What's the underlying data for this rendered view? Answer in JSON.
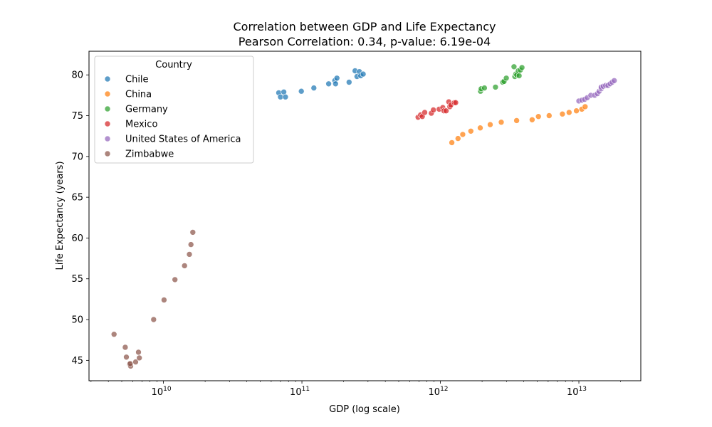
{
  "chart_data": {
    "type": "scatter",
    "title": "Correlation between GDP and Life Expectancy",
    "subtitle": "Pearson Correlation: 0.34, p-value: 6.19e-04",
    "xlabel": "GDP (log scale)",
    "ylabel": "Life Expectancy (years)",
    "xscale": "log",
    "xlim": [
      2900000000.0,
      28000000000000.0
    ],
    "ylim": [
      42.5,
      82.9
    ],
    "x_ticks": [
      {
        "value": 10000000000.0,
        "base": "10",
        "exp": "10"
      },
      {
        "value": 100000000000.0,
        "base": "10",
        "exp": "11"
      },
      {
        "value": 1000000000000.0,
        "base": "10",
        "exp": "12"
      },
      {
        "value": 10000000000000.0,
        "base": "10",
        "exp": "13"
      }
    ],
    "y_ticks": [
      45,
      50,
      55,
      60,
      65,
      70,
      75,
      80
    ],
    "grid": false,
    "legend": {
      "title": "Country",
      "placement": "top-left"
    },
    "series": [
      {
        "name": "Chile",
        "color": "#1f77b4",
        "points": [
          [
            68000000000.0,
            77.8
          ],
          [
            70000000000.0,
            77.3
          ],
          [
            74000000000.0,
            77.9
          ],
          [
            76000000000.0,
            77.3
          ],
          [
            99000000000.0,
            78.0
          ],
          [
            122000000000.0,
            78.4
          ],
          [
            156000000000.0,
            78.9
          ],
          [
            173000000000.0,
            79.3
          ],
          [
            175000000000.0,
            78.9
          ],
          [
            179000000000.0,
            79.6
          ],
          [
            219000000000.0,
            79.1
          ],
          [
            242000000000.0,
            80.5
          ],
          [
            250000000000.0,
            79.8
          ],
          [
            260000000000.0,
            80.4
          ],
          [
            266000000000.0,
            79.9
          ],
          [
            277000000000.0,
            80.1
          ]
        ]
      },
      {
        "name": "China",
        "color": "#ff7f0e",
        "points": [
          [
            1210000000000.0,
            71.7
          ],
          [
            1340000000000.0,
            72.2
          ],
          [
            1450000000000.0,
            72.7
          ],
          [
            1660000000000.0,
            73.1
          ],
          [
            1940000000000.0,
            73.5
          ],
          [
            2290000000000.0,
            73.9
          ],
          [
            2750000000000.0,
            74.2
          ],
          [
            3550000000000.0,
            74.4
          ],
          [
            4600000000000.0,
            74.5
          ],
          [
            5100000000000.0,
            74.9
          ],
          [
            6100000000000.0,
            75.0
          ],
          [
            7600000000000.0,
            75.2
          ],
          [
            8500000000000.0,
            75.4
          ],
          [
            9600000000000.0,
            75.6
          ],
          [
            10500000000000.0,
            75.8
          ],
          [
            11100000000000.0,
            76.1
          ]
        ]
      },
      {
        "name": "Germany",
        "color": "#2ca02c",
        "points": [
          [
            1950000000000.0,
            78.0
          ],
          [
            1970000000000.0,
            78.3
          ],
          [
            2080000000000.0,
            78.4
          ],
          [
            2500000000000.0,
            78.5
          ],
          [
            2820000000000.0,
            79.1
          ],
          [
            2880000000000.0,
            79.2
          ],
          [
            2990000000000.0,
            79.6
          ],
          [
            3400000000000.0,
            81.0
          ],
          [
            3450000000000.0,
            79.8
          ],
          [
            3500000000000.0,
            80.1
          ],
          [
            3560000000000.0,
            80.0
          ],
          [
            3650000000000.0,
            80.5
          ],
          [
            3700000000000.0,
            79.9
          ],
          [
            3780000000000.0,
            80.6
          ],
          [
            3880000000000.0,
            80.9
          ]
        ]
      },
      {
        "name": "Mexico",
        "color": "#d62728",
        "points": [
          [
            690000000000.0,
            74.8
          ],
          [
            720000000000.0,
            75.1
          ],
          [
            740000000000.0,
            74.9
          ],
          [
            770000000000.0,
            75.4
          ],
          [
            860000000000.0,
            75.3
          ],
          [
            890000000000.0,
            75.7
          ],
          [
            980000000000.0,
            75.8
          ],
          [
            1040000000000.0,
            76.0
          ],
          [
            1060000000000.0,
            75.6
          ],
          [
            1100000000000.0,
            75.6
          ],
          [
            1150000000000.0,
            76.7
          ],
          [
            1170000000000.0,
            76.1
          ],
          [
            1190000000000.0,
            76.3
          ],
          [
            1260000000000.0,
            76.6
          ],
          [
            1290000000000.0,
            76.6
          ]
        ]
      },
      {
        "name": "United States of America",
        "color": "#9467bd",
        "points": [
          [
            10000000000000.0,
            76.8
          ],
          [
            10500000000000.0,
            76.9
          ],
          [
            11000000000000.0,
            77.0
          ],
          [
            11500000000000.0,
            77.2
          ],
          [
            12200000000000.0,
            77.5
          ],
          [
            13000000000000.0,
            77.5
          ],
          [
            13600000000000.0,
            77.7
          ],
          [
            14000000000000.0,
            78.0
          ],
          [
            14500000000000.0,
            78.3
          ],
          [
            14500000000000.0,
            78.5
          ],
          [
            15000000000000.0,
            78.6
          ],
          [
            15600000000000.0,
            78.7
          ],
          [
            16200000000000.0,
            78.7
          ],
          [
            16800000000000.0,
            78.9
          ],
          [
            17400000000000.0,
            79.1
          ],
          [
            18000000000000.0,
            79.3
          ]
        ]
      },
      {
        "name": "Zimbabwe",
        "color": "#8c564b",
        "points": [
          [
            4400000000.0,
            48.2
          ],
          [
            5300000000.0,
            46.6
          ],
          [
            5400000000.0,
            45.4
          ],
          [
            5700000000.0,
            44.5
          ],
          [
            5800000000.0,
            44.3
          ],
          [
            5750000000.0,
            44.6
          ],
          [
            6300000000.0,
            44.8
          ],
          [
            6600000000.0,
            46.0
          ],
          [
            6700000000.0,
            45.3
          ],
          [
            8500000000.0,
            50.0
          ],
          [
            10100000000.0,
            52.4
          ],
          [
            12100000000.0,
            54.9
          ],
          [
            14200000000.0,
            56.6
          ],
          [
            15400000000.0,
            58.0
          ],
          [
            15800000000.0,
            59.2
          ],
          [
            16300000000.0,
            60.7
          ]
        ]
      }
    ]
  }
}
